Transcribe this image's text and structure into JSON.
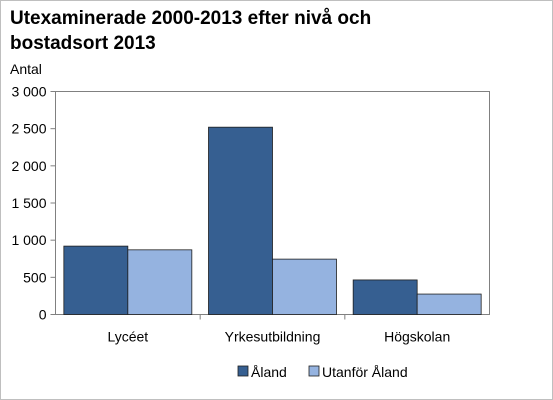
{
  "chart_data": {
    "type": "bar",
    "title": "Utexaminerade 2000-2013 efter nivå och bostadsort 2013",
    "ylabel": "Antal",
    "xlabel": "",
    "categories": [
      "Lycéet",
      "Yrkesutbildning",
      "Högskolan"
    ],
    "series": [
      {
        "name": "Åland",
        "values": [
          920,
          2520,
          465
        ],
        "color": "#365f91"
      },
      {
        "name": "Utanför Åland",
        "values": [
          870,
          745,
          275
        ],
        "color": "#95b3e0"
      }
    ],
    "ylim": [
      0,
      3000
    ],
    "yticks": [
      0,
      500,
      1000,
      1500,
      2000,
      2500,
      3000
    ],
    "ytick_labels": [
      "0",
      "500",
      "1 000",
      "1 500",
      "2 000",
      "2 500",
      "3 000"
    ],
    "grid": false,
    "legend": "bottom"
  }
}
